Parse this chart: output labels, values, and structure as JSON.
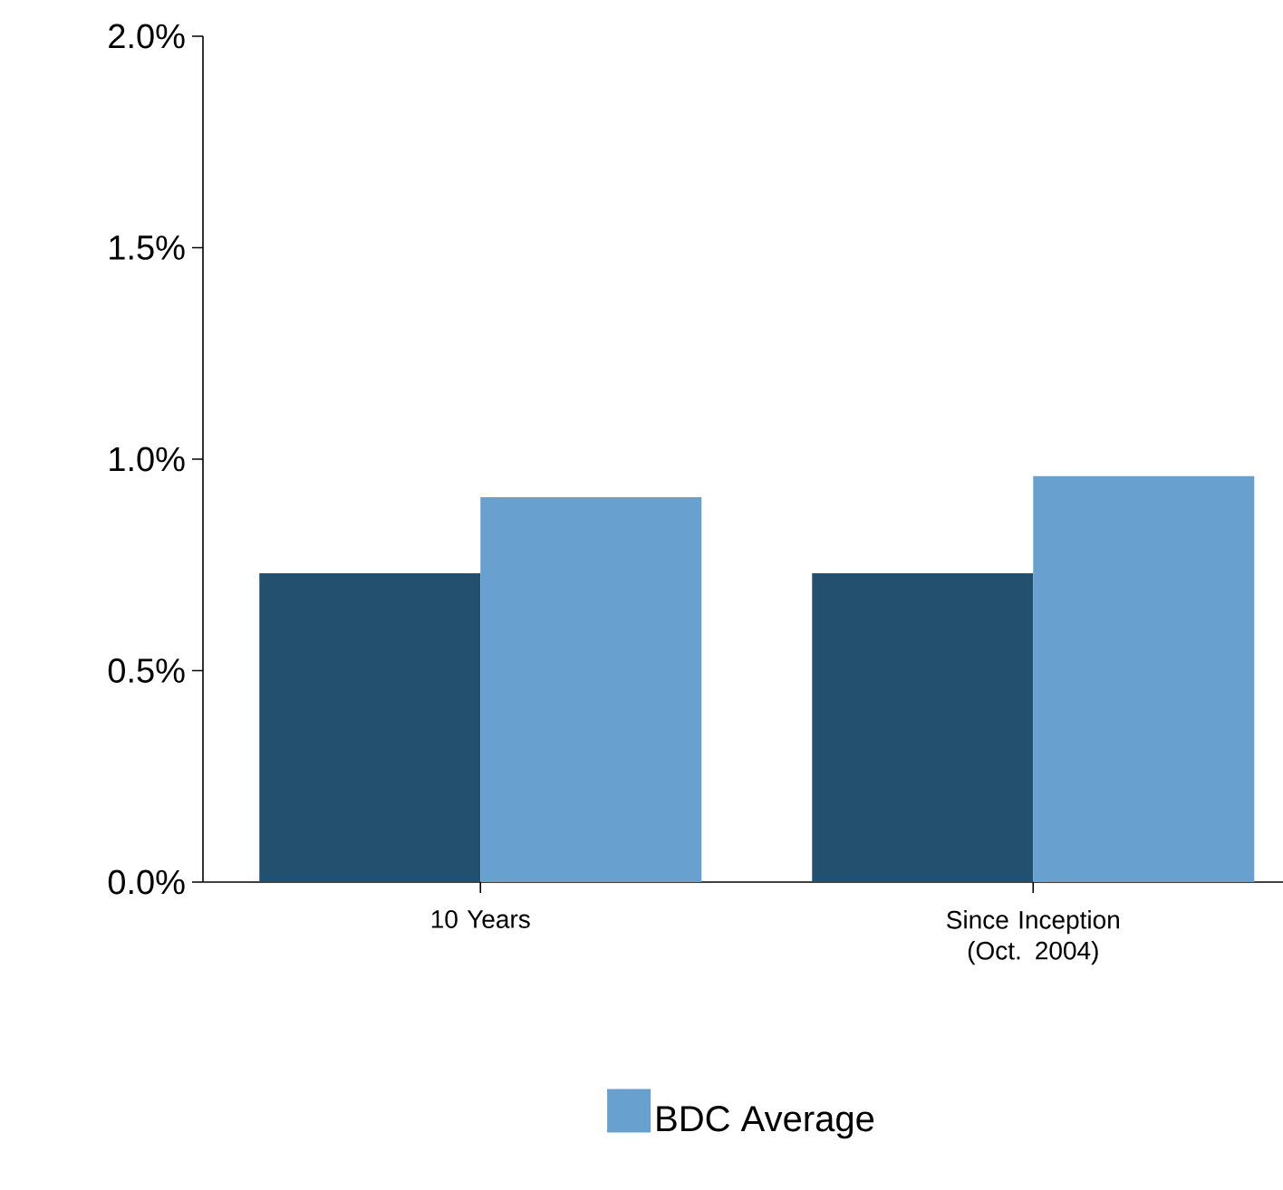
{
  "chart_data": {
    "type": "bar",
    "categories": [
      "10 Years",
      "Since Inception (Oct. 2004)"
    ],
    "series": [
      {
        "color": "#23506f",
        "values": [
          0.73,
          0.73
        ]
      },
      {
        "name": "BDC Average",
        "color": "#68a0d0",
        "values": [
          0.91,
          0.96
        ]
      }
    ],
    "ylim": [
      0,
      2.0
    ],
    "yticks": [
      {
        "value": 0,
        "label": "0.0%"
      },
      {
        "value": 0.5,
        "label": "0.5%"
      },
      {
        "value": 1.0,
        "label": "1.0%"
      },
      {
        "value": 1.5,
        "label": "1.5%"
      },
      {
        "value": 2.0,
        "label": "2.0%"
      }
    ],
    "legend": "bottom"
  }
}
